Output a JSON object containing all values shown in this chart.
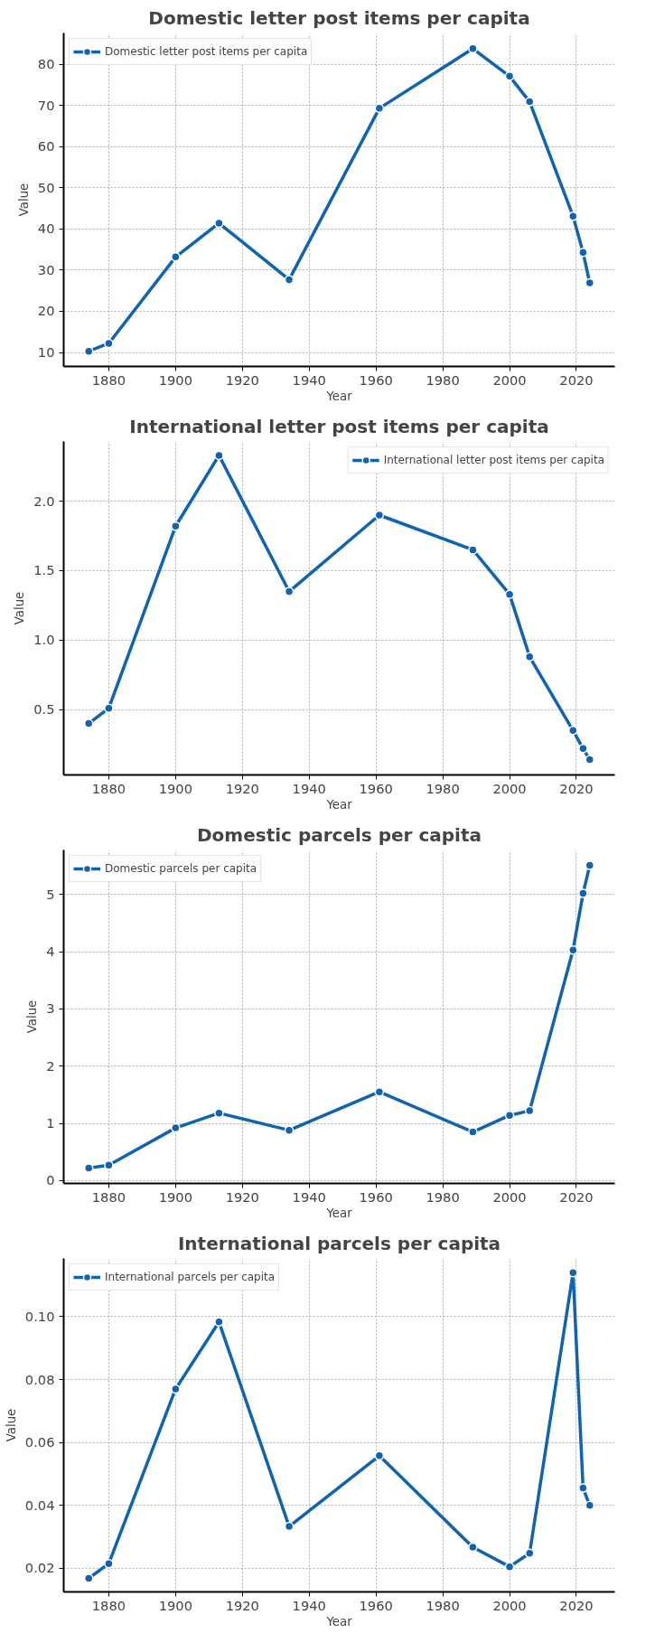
{
  "chart_data": [
    {
      "type": "line",
      "title": "Domestic letter post items per capita",
      "xlabel": "Year",
      "ylabel": "Value",
      "x": [
        1874,
        1880,
        1900,
        1913,
        1934,
        1961,
        1989,
        2000,
        2006,
        2019,
        2022,
        2024
      ],
      "series": [
        {
          "name": "Domestic letter post items per capita",
          "color": "#0f63b0",
          "values": [
            10.3,
            12.2,
            33.2,
            41.4,
            27.7,
            69.3,
            83.8,
            77.1,
            70.9,
            43.1,
            34.3,
            26.9
          ]
        }
      ],
      "xlim": [
        1866.5,
        2031.5
      ],
      "ylim": [
        6.6,
        87.6
      ],
      "xticks": [
        1880,
        1900,
        1920,
        1940,
        1960,
        1980,
        2000,
        2020
      ],
      "yticks": [
        10,
        20,
        30,
        40,
        50,
        60,
        70,
        80
      ],
      "grid": true,
      "legend": "top left",
      "marker": "circle",
      "line_style": "solid"
    },
    {
      "type": "line",
      "title": "International letter post items per capita",
      "xlabel": "Year",
      "ylabel": "Value",
      "x": [
        1874,
        1880,
        1900,
        1913,
        1934,
        1961,
        1989,
        2000,
        2006,
        2019,
        2022,
        2024
      ],
      "series": [
        {
          "name": "International letter post items per capita",
          "color": "#0f63b0",
          "values": [
            0.4,
            0.51,
            1.82,
            2.33,
            1.35,
            1.9,
            1.65,
            1.33,
            0.88,
            0.35,
            0.22,
            0.14
          ]
        }
      ],
      "xlim": [
        1866.5,
        2031.5
      ],
      "ylim": [
        0.03,
        2.43
      ],
      "xticks": [
        1880,
        1900,
        1920,
        1940,
        1960,
        1980,
        2000,
        2020
      ],
      "yticks": [
        {
          "value": 0.5,
          "label": "0.5"
        },
        {
          "value": 1,
          "label": "1.0"
        },
        {
          "value": 1.5,
          "label": "1.5"
        },
        {
          "value": 2,
          "label": "2.0"
        }
      ],
      "grid": true,
      "legend": "top right",
      "marker": "circle",
      "line_style": "solid"
    },
    {
      "type": "line",
      "title": "Domestic parcels per capita",
      "xlabel": "Year",
      "ylabel": "Value",
      "x": [
        1874,
        1880,
        1900,
        1913,
        1934,
        1961,
        1989,
        2000,
        2006,
        2019,
        2022,
        2024
      ],
      "series": [
        {
          "name": "Domestic parcels per capita",
          "color": "#0f63b0",
          "values": [
            0.22,
            0.27,
            0.92,
            1.18,
            0.88,
            1.55,
            0.85,
            1.14,
            1.22,
            4.03,
            5.02,
            5.51
          ]
        }
      ],
      "xlim": [
        1866.5,
        2031.5
      ],
      "ylim": [
        -0.05,
        5.78
      ],
      "xticks": [
        1880,
        1900,
        1920,
        1940,
        1960,
        1980,
        2000,
        2020
      ],
      "yticks": [
        0,
        1,
        2,
        3,
        4,
        5
      ],
      "grid": true,
      "legend": "top left",
      "marker": "circle",
      "line_style": "solid"
    },
    {
      "type": "line",
      "title": "International parcels per capita",
      "xlabel": "Year",
      "ylabel": "Value",
      "x": [
        1874,
        1880,
        1900,
        1913,
        1934,
        1961,
        1989,
        2000,
        2006,
        2019,
        2022,
        2024
      ],
      "series": [
        {
          "name": "International parcels per capita",
          "color": "#0f63b0",
          "values": [
            0.0168,
            0.0215,
            0.077,
            0.0983,
            0.0333,
            0.0558,
            0.0267,
            0.0205,
            0.0248,
            0.114,
            0.0455,
            0.04
          ]
        }
      ],
      "xlim": [
        1866.5,
        2031.5
      ],
      "ylim": [
        0.0125,
        0.1185
      ],
      "xticks": [
        1880,
        1900,
        1920,
        1940,
        1960,
        1980,
        2000,
        2020
      ],
      "yticks": [
        {
          "value": 0.02,
          "label": "0.02"
        },
        {
          "value": 0.04,
          "label": "0.04"
        },
        {
          "value": 0.06,
          "label": "0.06"
        },
        {
          "value": 0.08,
          "label": "0.08"
        },
        {
          "value": 0.1,
          "label": "0.10"
        }
      ],
      "grid": true,
      "legend": "top left",
      "marker": "circle",
      "line_style": "solid"
    }
  ]
}
